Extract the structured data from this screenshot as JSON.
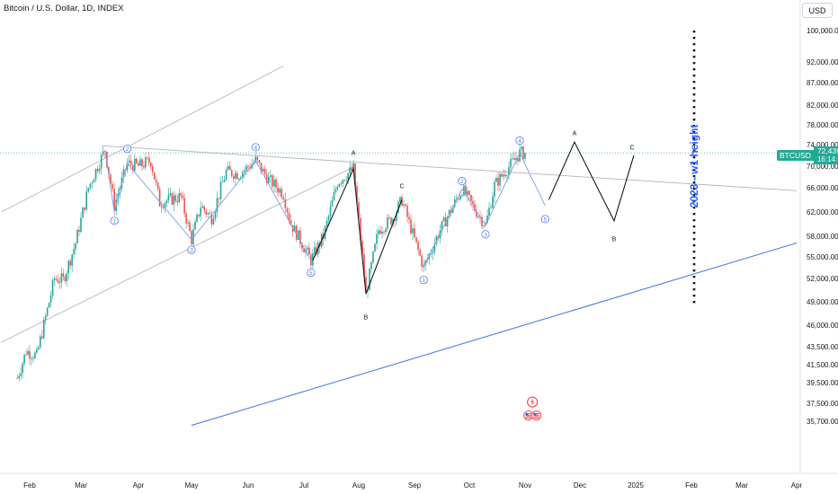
{
  "header": {
    "title": "Bitcoin / U.S. Dollar, 1D, INDEX",
    "currency": "USD"
  },
  "price_tag": {
    "symbol": "BTCUSD",
    "price": "72,439.42",
    "countdown": "16:14:12",
    "color": "#22ab94"
  },
  "annotation": {
    "text": "2023 - w1 height",
    "color": "#2962ff"
  },
  "colors": {
    "up": "#26a69a",
    "down": "#ef5350",
    "wave_blue": "#7b9ee6",
    "wave_black": "#131722",
    "trend_gray": "#b2b5be",
    "trend_blue": "#4d7fe0"
  },
  "chart_data": {
    "type": "candlestick",
    "title": "Bitcoin / U.S. Dollar, 1D, INDEX",
    "y_axis": {
      "ticks": [
        100000,
        92000,
        87000,
        82000,
        78000,
        74000,
        70000,
        66000,
        62000,
        58000,
        55000,
        52000,
        49000,
        46000,
        43500,
        41500,
        39500,
        37500,
        35700
      ],
      "tick_labels": [
        "100,000.00",
        "92,000.00",
        "87,000.00",
        "82,000.00",
        "78,000.00",
        "74,000.00",
        "70,000.00",
        "66,000.00",
        "62,000.00",
        "58,000.00",
        "55,000.00",
        "52,000.00",
        "49,000.00",
        "46,000.00",
        "43,500.00",
        "41,500.00",
        "39,500.00",
        "37,500.00",
        "35,700.00"
      ],
      "scale": "log"
    },
    "x_axis": {
      "tick_labels": [
        "Feb",
        "Mar",
        "Apr",
        "May",
        "Jun",
        "Jul",
        "Aug",
        "Sep",
        "Oct",
        "Nov",
        "Dec",
        "2025",
        "Feb",
        "Mar",
        "Apr"
      ]
    },
    "last_price": 72439.42,
    "price_path": [
      [
        "2024-01-25",
        40000
      ],
      [
        "2024-01-30",
        43000
      ],
      [
        "2024-02-05",
        42500
      ],
      [
        "2024-02-10",
        47000
      ],
      [
        "2024-02-15",
        52000
      ],
      [
        "2024-02-20",
        51800
      ],
      [
        "2024-02-27",
        57000
      ],
      [
        "2024-03-05",
        66000
      ],
      [
        "2024-03-10",
        70000
      ],
      [
        "2024-03-14",
        73000
      ],
      [
        "2024-03-19",
        63000
      ],
      [
        "2024-03-26",
        70500
      ],
      [
        "2024-04-01",
        70000
      ],
      [
        "2024-04-08",
        71000
      ],
      [
        "2024-04-13",
        63500
      ],
      [
        "2024-04-18",
        64000
      ],
      [
        "2024-04-25",
        64500
      ],
      [
        "2024-05-01",
        57500
      ],
      [
        "2024-05-06",
        63000
      ],
      [
        "2024-05-12",
        61000
      ],
      [
        "2024-05-20",
        69000
      ],
      [
        "2024-05-27",
        68500
      ],
      [
        "2024-06-05",
        71000
      ],
      [
        "2024-06-12",
        67500
      ],
      [
        "2024-06-20",
        65000
      ],
      [
        "2024-06-24",
        60000
      ],
      [
        "2024-07-05",
        54500
      ],
      [
        "2024-07-12",
        58000
      ],
      [
        "2024-07-20",
        67000
      ],
      [
        "2024-07-29",
        69500
      ],
      [
        "2024-08-05",
        50000
      ],
      [
        "2024-08-12",
        59000
      ],
      [
        "2024-08-20",
        61000
      ],
      [
        "2024-08-25",
        64000
      ],
      [
        "2024-09-01",
        57500
      ],
      [
        "2024-09-06",
        53500
      ],
      [
        "2024-09-15",
        59000
      ],
      [
        "2024-09-27",
        65800
      ],
      [
        "2024-10-05",
        62000
      ],
      [
        "2024-10-10",
        59800
      ],
      [
        "2024-10-15",
        66500
      ],
      [
        "2024-10-21",
        69000
      ],
      [
        "2024-10-29",
        72400
      ],
      [
        "2024-11-01",
        72439.42
      ]
    ],
    "wave_labels": [
      {
        "label": "1",
        "date": "2024-03-19",
        "value": 60500,
        "style": "blue-circle"
      },
      {
        "label": "2",
        "date": "2024-03-26",
        "value": 73200,
        "style": "blue-circle"
      },
      {
        "label": "3",
        "date": "2024-05-01",
        "value": 56000,
        "style": "blue-circle"
      },
      {
        "label": "4",
        "date": "2024-06-05",
        "value": 73500,
        "style": "blue-circle"
      },
      {
        "label": "5",
        "date": "2024-07-05",
        "value": 52800,
        "style": "blue-circle"
      },
      {
        "label": "1",
        "date": "2024-09-06",
        "value": 51800,
        "style": "blue-circle"
      },
      {
        "label": "2",
        "date": "2024-09-27",
        "value": 67200,
        "style": "blue-circle"
      },
      {
        "label": "3",
        "date": "2024-10-10",
        "value": 58300,
        "style": "blue-circle"
      },
      {
        "label": "4",
        "date": "2024-10-29",
        "value": 74800,
        "style": "blue-circle"
      },
      {
        "label": "5",
        "date": "2024-11-12",
        "value": 60800,
        "style": "blue-circle"
      },
      {
        "label": "A",
        "date": "2024-07-29",
        "value": 72500,
        "style": "text"
      },
      {
        "label": "B",
        "date": "2024-08-05",
        "value": 47000,
        "style": "text"
      },
      {
        "label": "C",
        "date": "2024-08-25",
        "value": 66300,
        "style": "text"
      },
      {
        "label": "A",
        "date": "2024-11-28",
        "value": 76300,
        "style": "text"
      },
      {
        "label": "B",
        "date": "2024-12-20",
        "value": 57600,
        "style": "text"
      },
      {
        "label": "C",
        "date": "2024-12-30",
        "value": 73500,
        "style": "text"
      }
    ],
    "wave_paths": {
      "blue_first": [
        [
          "2024-03-14",
          73000
        ],
        [
          "2024-03-19",
          62000
        ],
        [
          "2024-03-26",
          70500
        ],
        [
          "2024-05-01",
          57500
        ],
        [
          "2024-06-05",
          71000
        ],
        [
          "2024-07-05",
          54500
        ]
      ],
      "blue_second": [
        [
          "2024-09-06",
          53500
        ],
        [
          "2024-09-27",
          65800
        ],
        [
          "2024-10-10",
          59800
        ],
        [
          "2024-10-29",
          72400
        ],
        [
          "2024-11-12",
          63000
        ]
      ],
      "black_abc": [
        [
          "2024-07-06",
          54500
        ],
        [
          "2024-07-29",
          69500
        ],
        [
          "2024-08-05",
          50000
        ],
        [
          "2024-08-25",
          64000
        ]
      ],
      "black_projection": [
        [
          "2024-11-14",
          64000
        ],
        [
          "2024-11-28",
          74500
        ],
        [
          "2024-12-20",
          60500
        ],
        [
          "2024-12-31",
          72000
        ]
      ]
    },
    "trendlines": [
      {
        "style": "gray",
        "from": [
          "2024-01-16",
          62000
        ],
        "to": [
          "2024-06-20",
          91000
        ]
      },
      {
        "style": "gray",
        "from": [
          "2024-01-16",
          44000
        ],
        "to": [
          "2024-07-30",
          70000
        ]
      },
      {
        "style": "gray",
        "from": [
          "2024-03-12",
          73800
        ],
        "to": [
          "2025-04-01",
          65500
        ]
      },
      {
        "style": "blue",
        "from": [
          "2024-05-01",
          35300
        ],
        "to": [
          "2025-04-01",
          57000
        ]
      }
    ],
    "horizontal_line": {
      "value": 72439.42,
      "style": "dotted"
    },
    "vertical_marker": {
      "date": "2025-02-01",
      "from": 100000,
      "to": 48300,
      "style": "dotted"
    },
    "event_icons": {
      "date": "2024-11-05",
      "value": 36000
    }
  }
}
